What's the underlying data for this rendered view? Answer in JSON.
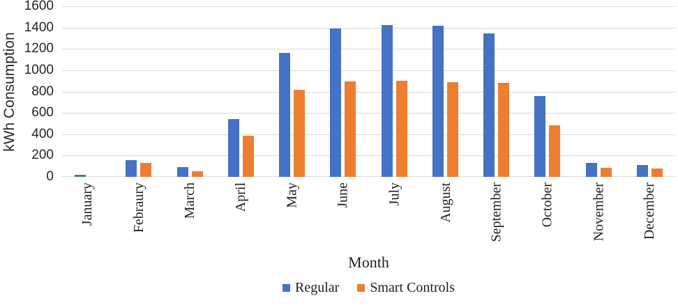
{
  "chart_data": {
    "type": "bar",
    "title": "",
    "xlabel": "Month",
    "ylabel": "kWh Consumption",
    "ylim": [
      0,
      1600
    ],
    "ytick_step": 200,
    "grid": true,
    "legend_position": "bottom",
    "categories": [
      "January",
      "Febraury",
      "March",
      "April",
      "May",
      "June",
      "July",
      "August",
      "September",
      "October",
      "November",
      "December"
    ],
    "series": [
      {
        "name": "Regular",
        "color": "#4472C4",
        "values": [
          20,
          160,
          90,
          540,
          1160,
          1390,
          1425,
          1420,
          1345,
          760,
          130,
          110
        ]
      },
      {
        "name": "Smart Controls",
        "color": "#ED7D31",
        "values": [
          0,
          130,
          55,
          385,
          815,
          895,
          900,
          890,
          880,
          485,
          85,
          80
        ]
      }
    ]
  },
  "colors": {
    "background": "#FFFFFF",
    "gridline": "#D9D9D9",
    "axis_text": "#262626",
    "label_text": "#1F1F1F",
    "series_regular": "#4472C4",
    "series_smart_controls": "#ED7D31"
  }
}
